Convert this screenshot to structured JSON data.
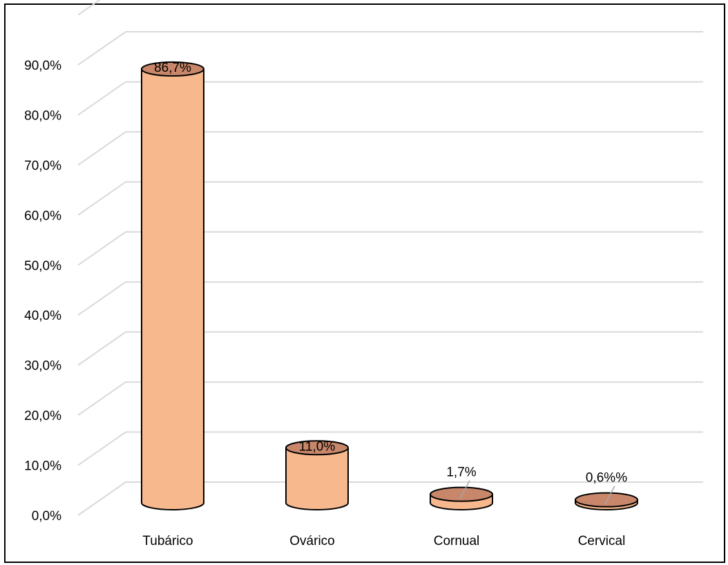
{
  "chart_data": {
    "type": "bar",
    "style": "3d-cylinder",
    "categories": [
      "Tubárico",
      "Ovárico",
      "Cornual",
      "Cervical"
    ],
    "values": [
      86.7,
      11.0,
      1.7,
      0.6
    ],
    "data_labels": [
      "86,7%",
      "11,0%",
      "1,7%",
      "0,6%%"
    ],
    "y_ticks": [
      "0,0%",
      "10,0%",
      "20,0%",
      "30,0%",
      "40,0%",
      "50,0%",
      "60,0%",
      "70,0%",
      "80,0%",
      "90,0%"
    ],
    "ylim": [
      0,
      90
    ],
    "grid": true,
    "legend": "none",
    "colors": {
      "bar_body": "#f8b88e",
      "bar_top": "#c8876a",
      "gridline": "#d9d9d9",
      "outline": "#000000",
      "leader_line": "#a6a6a6"
    }
  }
}
